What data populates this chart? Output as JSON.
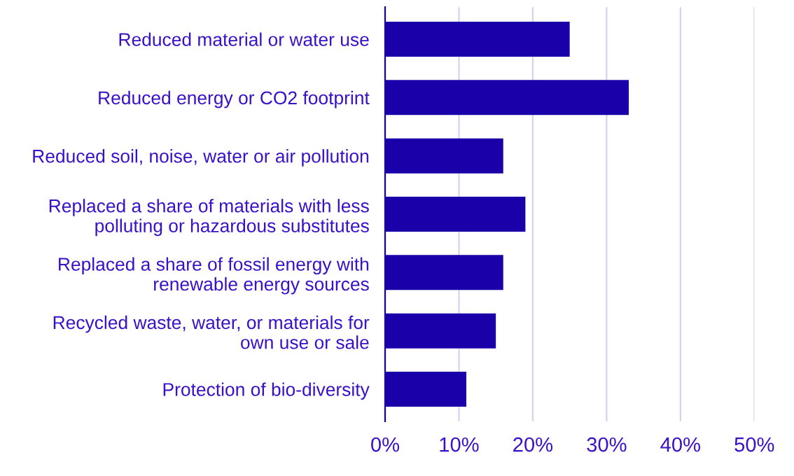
{
  "chart_data": {
    "type": "bar",
    "orientation": "horizontal",
    "categories": [
      "Reduced material or water use",
      "Reduced energy or CO2 footprint",
      "Reduced soil, noise, water or air pollution",
      "Replaced a share of materials with less\npolluting or hazardous substitutes",
      "Replaced a share of fossil energy with\nrenewable energy sources",
      "Recycled waste, water, or materials for\nown use or sale",
      "Protection of bio-diversity"
    ],
    "values": [
      25,
      33,
      16,
      19,
      16,
      15,
      11
    ],
    "color": "#1a00a8",
    "xlim": [
      0,
      50
    ],
    "xticks": [
      {
        "value": 0,
        "label": "0%"
      },
      {
        "value": 10,
        "label": "10%"
      },
      {
        "value": 20,
        "label": "20%"
      },
      {
        "value": 30,
        "label": "30%"
      },
      {
        "value": 40,
        "label": "40%"
      },
      {
        "value": 50,
        "label": "50%"
      }
    ],
    "grid": "x"
  }
}
